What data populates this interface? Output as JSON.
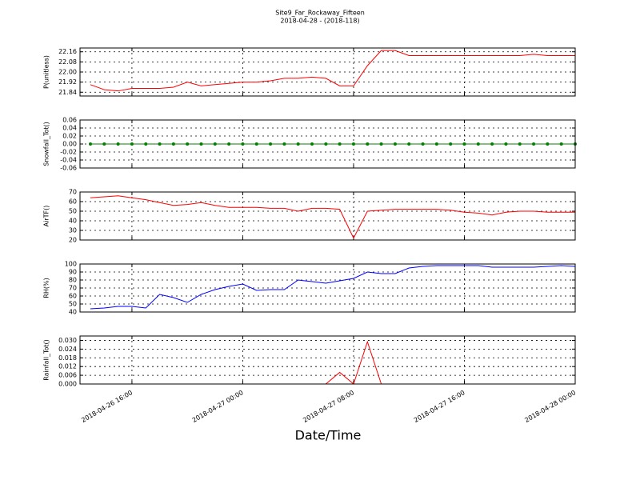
{
  "chart_data": {
    "type": "line",
    "title": "Site9_Far_Rockaway_Fifteen",
    "subtitle": "2018-04-28 - (2018-118)",
    "xlabel": "Date/Time",
    "xlim": [
      "2018-04-26 12:15",
      "2018-04-28 00:00"
    ],
    "xticks": [
      "2018-04-26 16:00",
      "2018-04-27 00:00",
      "2018-04-27 08:00",
      "2018-04-27 16:00",
      "2018-04-28 00:00"
    ],
    "grid": true,
    "x": [
      "2018-04-26 13:00",
      "2018-04-26 14:00",
      "2018-04-26 15:00",
      "2018-04-26 16:00",
      "2018-04-26 17:00",
      "2018-04-26 18:00",
      "2018-04-26 19:00",
      "2018-04-26 20:00",
      "2018-04-26 21:00",
      "2018-04-26 22:00",
      "2018-04-26 23:00",
      "2018-04-27 00:00",
      "2018-04-27 01:00",
      "2018-04-27 02:00",
      "2018-04-27 03:00",
      "2018-04-27 04:00",
      "2018-04-27 05:00",
      "2018-04-27 06:00",
      "2018-04-27 07:00",
      "2018-04-27 08:00",
      "2018-04-27 09:00",
      "2018-04-27 10:00",
      "2018-04-27 11:00",
      "2018-04-27 12:00",
      "2018-04-27 13:00",
      "2018-04-27 14:00",
      "2018-04-27 15:00",
      "2018-04-27 16:00",
      "2018-04-27 17:00",
      "2018-04-27 18:00",
      "2018-04-27 19:00",
      "2018-04-27 20:00",
      "2018-04-27 21:00",
      "2018-04-27 22:00",
      "2018-04-27 23:00",
      "2018-04-28 00:00"
    ],
    "panels": [
      {
        "ylabel": "P(unitless)",
        "ylim": [
          21.81,
          22.19
        ],
        "yticks": [
          21.84,
          21.92,
          {
            "value": 22,
            "label": "22.00"
          },
          22.08,
          22.16
        ],
        "series": [
          {
            "color": "#ff0000",
            "values": [
              21.9,
              21.86,
              21.85,
              21.87,
              21.87,
              21.87,
              21.88,
              21.92,
              21.89,
              21.9,
              21.91,
              21.92,
              21.92,
              21.93,
              21.95,
              21.95,
              21.96,
              21.95,
              21.89,
              21.89,
              22.05,
              22.17,
              22.17,
              22.13,
              22.13,
              22.13,
              22.13,
              22.13,
              22.13,
              22.13,
              22.13,
              22.13,
              22.14,
              22.13,
              22.13,
              22.13
            ]
          }
        ]
      },
      {
        "ylabel": "Snowfall_Tot()",
        "ylim": [
          -0.06,
          0.06
        ],
        "yticks": [
          -0.06,
          -0.04,
          -0.02,
          {
            "value": 0,
            "label": "0.00"
          },
          0.02,
          0.04,
          0.06
        ],
        "series": [
          {
            "color": "#008000",
            "marker": true,
            "values": [
              0,
              0,
              0,
              0,
              0,
              0,
              0,
              0,
              0,
              0,
              0,
              0,
              0,
              0,
              0,
              0,
              0,
              0,
              0,
              0,
              0,
              0,
              0,
              0,
              0,
              0,
              0,
              0,
              0,
              0,
              0,
              0,
              0,
              0,
              0,
              0
            ]
          }
        ]
      },
      {
        "ylabel": "AirTF()",
        "ylim": [
          20,
          70
        ],
        "yticks": [
          20,
          30,
          40,
          50,
          60,
          70
        ],
        "series": [
          {
            "color": "#ff0000",
            "values": [
              64,
              65,
              66,
              64,
              62,
              59,
              56,
              57,
              59,
              56,
              54,
              54,
              54,
              53,
              53,
              50,
              53,
              53,
              52,
              22,
              50,
              51,
              52,
              52,
              52,
              52,
              51,
              49,
              48,
              46,
              49,
              50,
              50,
              49,
              49,
              49
            ]
          }
        ]
      },
      {
        "ylabel": "RH(%)",
        "ylim": [
          40,
          100
        ],
        "yticks": [
          40,
          50,
          60,
          70,
          80,
          90,
          100
        ],
        "series": [
          {
            "color": "#0000ff",
            "values": [
              44,
              45,
              47,
              47,
              45,
              62,
              58,
              52,
              62,
              68,
              72,
              75,
              67,
              68,
              68,
              80,
              78,
              76,
              79,
              82,
              90,
              88,
              88,
              95,
              97,
              98,
              98,
              98,
              98,
              96,
              96,
              96,
              96,
              97,
              98,
              97
            ]
          }
        ]
      },
      {
        "ylabel": "Rainfall_Tot()",
        "ylim": [
          0,
          0.033
        ],
        "yticks": [
          {
            "value": 0,
            "label": "0.000"
          },
          {
            "value": 0.006,
            "label": "0.006"
          },
          {
            "value": 0.012,
            "label": "0.012"
          },
          {
            "value": 0.018,
            "label": "0.018"
          },
          {
            "value": 0.024,
            "label": "0.024"
          },
          {
            "value": 0.03,
            "label": "0.030"
          }
        ],
        "series": [
          {
            "color": "#ff0000",
            "values": [
              0,
              0,
              0,
              0,
              0,
              0,
              0,
              0,
              0,
              0,
              0,
              0,
              0,
              0,
              0,
              0,
              0,
              0,
              0.008,
              0,
              0.029,
              0,
              0,
              0,
              0,
              0,
              0,
              0,
              0,
              0,
              0,
              0,
              0,
              0,
              0,
              0
            ]
          }
        ]
      }
    ]
  }
}
